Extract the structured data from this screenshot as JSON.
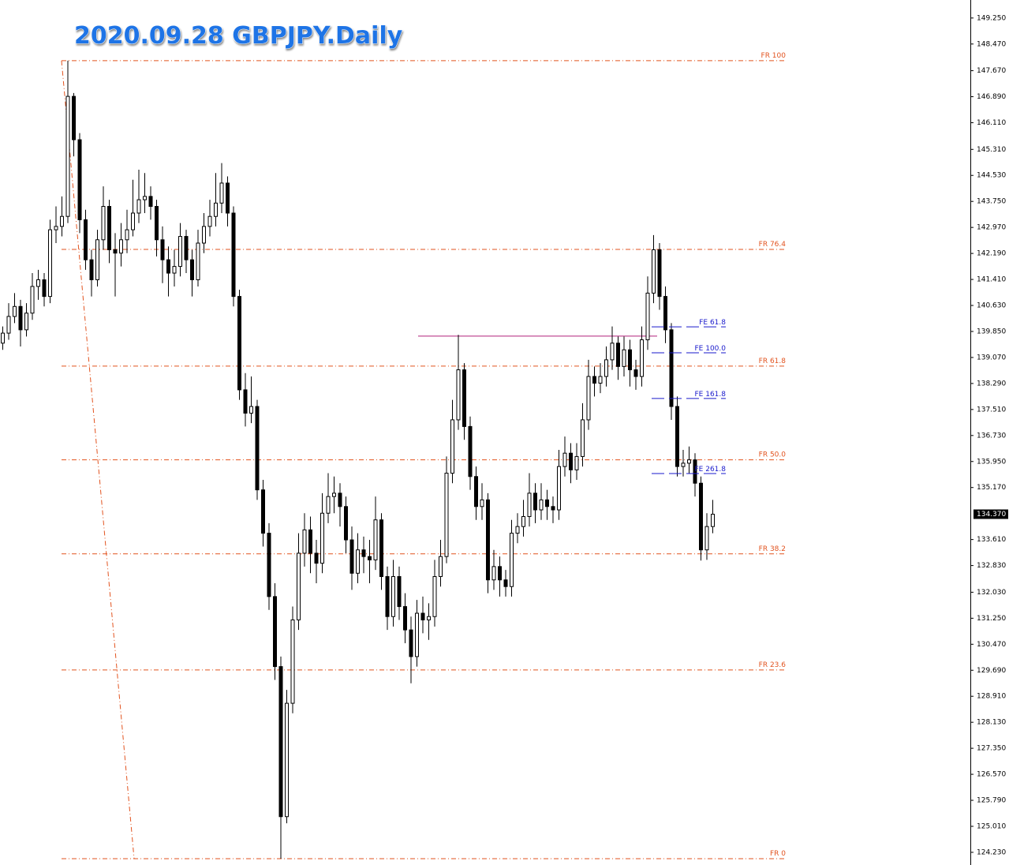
{
  "chart_data": {
    "type": "candlestick",
    "title": "2020.09.28 GBPJPY.Daily",
    "up_color": "#ffffff",
    "down_color": "#000000",
    "ylim": [
      123.85,
      149.79
    ],
    "yticks": [
      {
        "value": 149.25,
        "label": "149.250"
      },
      {
        "value": 148.47,
        "label": "148.470"
      },
      {
        "value": 147.67,
        "label": "147.670"
      },
      {
        "value": 146.89,
        "label": "146.890"
      },
      {
        "value": 146.11,
        "label": "146.110"
      },
      {
        "value": 145.31,
        "label": "145.310"
      },
      {
        "value": 144.53,
        "label": "144.530"
      },
      {
        "value": 143.75,
        "label": "143.750"
      },
      {
        "value": 142.97,
        "label": "142.970"
      },
      {
        "value": 142.19,
        "label": "142.190"
      },
      {
        "value": 141.41,
        "label": "141.410"
      },
      {
        "value": 140.63,
        "label": "140.630"
      },
      {
        "value": 139.85,
        "label": "139.850"
      },
      {
        "value": 139.07,
        "label": "139.070"
      },
      {
        "value": 138.29,
        "label": "138.290"
      },
      {
        "value": 137.51,
        "label": "137.510"
      },
      {
        "value": 136.73,
        "label": "136.730"
      },
      {
        "value": 135.95,
        "label": "135.950"
      },
      {
        "value": 135.17,
        "label": "135.170"
      },
      {
        "value": 133.61,
        "label": "133.610"
      },
      {
        "value": 132.83,
        "label": "132.830"
      },
      {
        "value": 132.03,
        "label": "132.030"
      },
      {
        "value": 131.25,
        "label": "131.250"
      },
      {
        "value": 130.47,
        "label": "130.470"
      },
      {
        "value": 129.69,
        "label": "129.690"
      },
      {
        "value": 128.91,
        "label": "128.910"
      },
      {
        "value": 128.13,
        "label": "128.130"
      },
      {
        "value": 127.35,
        "label": "127.350"
      },
      {
        "value": 126.57,
        "label": "126.570"
      },
      {
        "value": 125.79,
        "label": "125.790"
      },
      {
        "value": 125.01,
        "label": "125.010"
      },
      {
        "value": 124.23,
        "label": "124.230"
      }
    ],
    "last_price": {
      "value": 134.37,
      "label": "134.370"
    },
    "candles": [
      [
        139.5,
        140.0,
        139.3,
        139.8
      ],
      [
        139.8,
        140.7,
        139.6,
        140.3
      ],
      [
        140.3,
        141.0,
        140.1,
        140.6
      ],
      [
        140.6,
        140.8,
        139.4,
        139.9
      ],
      [
        139.9,
        140.7,
        139.7,
        140.4
      ],
      [
        140.4,
        141.6,
        140.2,
        141.2
      ],
      [
        141.2,
        141.7,
        140.8,
        141.4
      ],
      [
        141.4,
        141.6,
        140.6,
        140.9
      ],
      [
        140.9,
        143.2,
        140.7,
        142.9
      ],
      [
        142.9,
        143.6,
        142.5,
        143.0
      ],
      [
        143.0,
        143.9,
        142.7,
        143.3
      ],
      [
        143.3,
        147.97,
        143.1,
        146.9
      ],
      [
        146.9,
        147.0,
        145.1,
        145.6
      ],
      [
        145.6,
        145.8,
        142.8,
        143.2
      ],
      [
        143.2,
        143.5,
        141.7,
        142.0
      ],
      [
        142.0,
        142.3,
        140.9,
        141.4
      ],
      [
        141.4,
        142.9,
        141.2,
        142.6
      ],
      [
        142.6,
        144.2,
        142.3,
        143.6
      ],
      [
        143.6,
        143.8,
        141.9,
        142.3
      ],
      [
        142.3,
        142.8,
        140.9,
        142.2
      ],
      [
        142.2,
        143.1,
        141.8,
        142.6
      ],
      [
        142.6,
        143.5,
        142.2,
        142.9
      ],
      [
        142.9,
        144.4,
        142.7,
        143.4
      ],
      [
        143.4,
        144.7,
        143.1,
        143.8
      ],
      [
        143.8,
        144.6,
        143.4,
        143.9
      ],
      [
        143.9,
        144.2,
        143.2,
        143.6
      ],
      [
        143.6,
        143.8,
        142.1,
        142.6
      ],
      [
        142.6,
        143.0,
        141.3,
        142.0
      ],
      [
        142.0,
        142.4,
        140.9,
        141.6
      ],
      [
        141.6,
        142.3,
        141.2,
        141.8
      ],
      [
        141.8,
        143.1,
        141.5,
        142.7
      ],
      [
        142.7,
        142.9,
        141.6,
        142.0
      ],
      [
        142.0,
        142.3,
        140.9,
        141.4
      ],
      [
        141.4,
        142.9,
        141.2,
        142.5
      ],
      [
        142.5,
        143.4,
        142.2,
        143.0
      ],
      [
        143.0,
        143.8,
        142.7,
        143.3
      ],
      [
        143.3,
        144.6,
        143.0,
        143.7
      ],
      [
        143.7,
        144.9,
        143.4,
        144.3
      ],
      [
        144.3,
        144.5,
        143.0,
        143.4
      ],
      [
        143.4,
        143.6,
        140.6,
        140.9
      ],
      [
        140.9,
        141.1,
        137.8,
        138.1
      ],
      [
        138.1,
        138.6,
        137.0,
        137.4
      ],
      [
        137.4,
        138.5,
        137.1,
        137.6
      ],
      [
        137.6,
        137.8,
        134.8,
        135.1
      ],
      [
        135.1,
        135.4,
        133.4,
        133.8
      ],
      [
        133.8,
        134.1,
        131.5,
        131.9
      ],
      [
        131.9,
        132.3,
        129.4,
        129.8
      ],
      [
        129.8,
        130.1,
        124.04,
        125.3
      ],
      [
        125.3,
        129.1,
        125.1,
        128.7
      ],
      [
        128.7,
        131.6,
        128.4,
        131.2
      ],
      [
        131.2,
        133.8,
        130.9,
        133.2
      ],
      [
        133.2,
        134.4,
        132.8,
        133.9
      ],
      [
        133.9,
        134.3,
        132.6,
        133.2
      ],
      [
        133.2,
        133.6,
        132.3,
        132.9
      ],
      [
        132.9,
        135.0,
        132.6,
        134.4
      ],
      [
        134.4,
        135.6,
        134.1,
        134.9
      ],
      [
        134.9,
        135.5,
        134.4,
        135.0
      ],
      [
        135.0,
        135.3,
        134.0,
        134.6
      ],
      [
        134.6,
        134.9,
        133.2,
        133.6
      ],
      [
        133.6,
        134.0,
        132.1,
        132.6
      ],
      [
        132.6,
        133.8,
        132.3,
        133.3
      ],
      [
        133.3,
        133.7,
        132.6,
        133.1
      ],
      [
        133.1,
        133.6,
        132.3,
        133.0
      ],
      [
        133.0,
        134.9,
        132.7,
        134.2
      ],
      [
        134.2,
        134.4,
        132.1,
        132.5
      ],
      [
        132.5,
        132.8,
        130.9,
        131.3
      ],
      [
        131.3,
        133.0,
        131.0,
        132.5
      ],
      [
        132.5,
        132.8,
        131.2,
        131.6
      ],
      [
        131.6,
        132.0,
        130.5,
        130.9
      ],
      [
        130.9,
        131.3,
        129.3,
        130.1
      ],
      [
        130.1,
        131.8,
        129.8,
        131.4
      ],
      [
        131.4,
        131.9,
        130.8,
        131.2
      ],
      [
        131.2,
        131.7,
        130.6,
        131.3
      ],
      [
        131.3,
        133.0,
        131.0,
        132.5
      ],
      [
        132.5,
        133.6,
        132.2,
        133.1
      ],
      [
        133.1,
        136.1,
        132.9,
        135.6
      ],
      [
        135.6,
        137.8,
        135.3,
        137.2
      ],
      [
        137.2,
        139.75,
        136.9,
        138.7
      ],
      [
        138.7,
        138.9,
        136.6,
        137.0
      ],
      [
        137.0,
        137.3,
        135.1,
        135.5
      ],
      [
        135.5,
        135.8,
        134.2,
        134.6
      ],
      [
        134.6,
        135.3,
        134.2,
        134.8
      ],
      [
        134.8,
        135.0,
        132.0,
        132.4
      ],
      [
        132.4,
        133.3,
        132.1,
        132.8
      ],
      [
        132.8,
        133.1,
        131.9,
        132.4
      ],
      [
        132.4,
        132.7,
        131.9,
        132.2
      ],
      [
        132.2,
        134.2,
        131.9,
        133.8
      ],
      [
        133.8,
        134.4,
        133.5,
        134.0
      ],
      [
        134.0,
        134.8,
        133.7,
        134.3
      ],
      [
        134.3,
        135.6,
        134.0,
        135.0
      ],
      [
        135.0,
        135.3,
        134.1,
        134.5
      ],
      [
        134.5,
        135.3,
        134.2,
        134.8
      ],
      [
        134.8,
        135.1,
        134.2,
        134.6
      ],
      [
        134.6,
        134.9,
        134.1,
        134.5
      ],
      [
        134.5,
        136.3,
        134.2,
        135.8
      ],
      [
        135.8,
        136.7,
        135.5,
        136.2
      ],
      [
        136.2,
        136.5,
        135.3,
        135.7
      ],
      [
        135.7,
        136.5,
        135.4,
        136.1
      ],
      [
        136.1,
        137.7,
        135.8,
        137.2
      ],
      [
        137.2,
        139.0,
        136.9,
        138.5
      ],
      [
        138.5,
        138.8,
        137.9,
        138.3
      ],
      [
        138.3,
        138.9,
        138.0,
        138.5
      ],
      [
        138.5,
        139.4,
        138.2,
        139.0
      ],
      [
        139.0,
        140.0,
        138.7,
        139.5
      ],
      [
        139.5,
        139.7,
        138.4,
        138.8
      ],
      [
        138.8,
        139.7,
        138.5,
        139.3
      ],
      [
        139.3,
        139.6,
        138.2,
        138.7
      ],
      [
        138.7,
        139.0,
        138.1,
        138.5
      ],
      [
        138.5,
        140.0,
        138.2,
        139.6
      ],
      [
        139.6,
        141.5,
        139.3,
        141.0
      ],
      [
        141.0,
        142.74,
        140.7,
        142.3
      ],
      [
        142.3,
        142.5,
        140.5,
        140.9
      ],
      [
        140.9,
        141.2,
        139.5,
        139.9
      ],
      [
        139.9,
        140.1,
        137.2,
        137.6
      ],
      [
        137.6,
        137.9,
        135.5,
        135.8
      ],
      [
        135.8,
        136.3,
        135.5,
        135.9
      ],
      [
        135.9,
        136.4,
        135.6,
        136.0
      ],
      [
        136.0,
        136.2,
        134.9,
        135.3
      ],
      [
        135.3,
        135.5,
        132.98,
        133.3
      ],
      [
        133.3,
        134.4,
        133.0,
        134.0
      ],
      [
        134.0,
        134.8,
        133.8,
        134.37
      ]
    ],
    "fibo_retracement": {
      "color": "#e2531f",
      "levels": [
        {
          "label": "FR  100",
          "value": 147.97
        },
        {
          "label": "FR  76.4",
          "value": 142.31
        },
        {
          "label": "FR  61.8",
          "value": 138.81
        },
        {
          "label": "FR  50.0",
          "value": 136.0
        },
        {
          "label": "FR  38.2",
          "value": 133.18
        },
        {
          "label": "FR  23.6",
          "value": 129.7
        },
        {
          "label": "FR  0",
          "value": 124.04
        }
      ]
    },
    "fibo_expansion": {
      "color": "#1a1acc",
      "levels": [
        {
          "label": "FE  61.8",
          "value": 139.99
        },
        {
          "label": "FE  100.0",
          "value": 139.21
        },
        {
          "label": "FE  161.8",
          "value": 137.84
        },
        {
          "label": "FE  261.8",
          "value": 135.59
        }
      ]
    },
    "resistance_line": {
      "value": 139.71,
      "color": "#b0207a"
    }
  }
}
